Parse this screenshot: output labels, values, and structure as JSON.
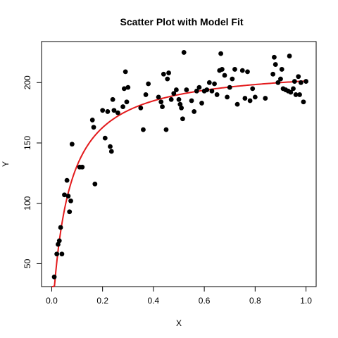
{
  "chart_data": {
    "type": "scatter",
    "title": "Scatter Plot with Model Fit",
    "xlabel": "X",
    "ylabel": "Y",
    "xlim": [
      -0.04,
      1.04
    ],
    "ylim": [
      31,
      234
    ],
    "x_ticks": [
      "0.0",
      "0.2",
      "0.4",
      "0.6",
      "0.8",
      "1.0"
    ],
    "x_tick_values": [
      0,
      0.2,
      0.4,
      0.6,
      0.8,
      1.0
    ],
    "y_ticks": [
      "50",
      "100",
      "150",
      "200"
    ],
    "y_tick_values": [
      50,
      100,
      150,
      200
    ],
    "grid": false,
    "legend": "none",
    "point_color": "#000000",
    "fit_color": "#e31a1c",
    "fit_model": {
      "form": "Vmax*x/(K+x)",
      "Vmax": 214,
      "K": 0.063
    },
    "series": [
      {
        "values": [
          [
            0.01,
            39
          ],
          [
            0.02,
            58
          ],
          [
            0.025,
            66
          ],
          [
            0.03,
            69
          ],
          [
            0.035,
            80
          ],
          [
            0.04,
            58
          ],
          [
            0.05,
            107
          ],
          [
            0.06,
            119
          ],
          [
            0.065,
            106
          ],
          [
            0.07,
            93
          ],
          [
            0.075,
            102
          ],
          [
            0.08,
            149
          ],
          [
            0.11,
            130
          ],
          [
            0.12,
            130
          ],
          [
            0.16,
            169
          ],
          [
            0.165,
            163
          ],
          [
            0.17,
            116
          ],
          [
            0.2,
            177
          ],
          [
            0.21,
            154
          ],
          [
            0.22,
            176
          ],
          [
            0.23,
            147
          ],
          [
            0.235,
            143
          ],
          [
            0.24,
            186
          ],
          [
            0.245,
            177
          ],
          [
            0.26,
            175
          ],
          [
            0.28,
            180
          ],
          [
            0.285,
            195
          ],
          [
            0.29,
            209
          ],
          [
            0.295,
            184
          ],
          [
            0.3,
            196
          ],
          [
            0.35,
            179
          ],
          [
            0.36,
            161
          ],
          [
            0.37,
            190
          ],
          [
            0.38,
            199
          ],
          [
            0.42,
            188
          ],
          [
            0.43,
            184
          ],
          [
            0.435,
            180
          ],
          [
            0.44,
            207
          ],
          [
            0.45,
            161
          ],
          [
            0.455,
            203
          ],
          [
            0.46,
            208
          ],
          [
            0.47,
            186
          ],
          [
            0.48,
            191
          ],
          [
            0.49,
            194
          ],
          [
            0.5,
            186
          ],
          [
            0.505,
            182
          ],
          [
            0.51,
            179
          ],
          [
            0.515,
            170
          ],
          [
            0.52,
            225
          ],
          [
            0.53,
            194
          ],
          [
            0.55,
            185
          ],
          [
            0.56,
            176
          ],
          [
            0.57,
            193
          ],
          [
            0.58,
            196
          ],
          [
            0.59,
            183
          ],
          [
            0.6,
            193
          ],
          [
            0.61,
            194
          ],
          [
            0.62,
            200
          ],
          [
            0.63,
            193
          ],
          [
            0.64,
            199
          ],
          [
            0.65,
            190
          ],
          [
            0.66,
            210
          ],
          [
            0.665,
            224
          ],
          [
            0.67,
            211
          ],
          [
            0.68,
            206
          ],
          [
            0.69,
            188
          ],
          [
            0.7,
            196
          ],
          [
            0.71,
            203
          ],
          [
            0.72,
            211
          ],
          [
            0.73,
            182
          ],
          [
            0.75,
            210
          ],
          [
            0.76,
            187
          ],
          [
            0.77,
            209
          ],
          [
            0.78,
            185
          ],
          [
            0.79,
            195
          ],
          [
            0.8,
            188
          ],
          [
            0.84,
            187
          ],
          [
            0.87,
            207
          ],
          [
            0.875,
            221
          ],
          [
            0.88,
            215
          ],
          [
            0.89,
            200
          ],
          [
            0.9,
            203
          ],
          [
            0.905,
            211
          ],
          [
            0.91,
            195
          ],
          [
            0.92,
            194
          ],
          [
            0.93,
            193
          ],
          [
            0.935,
            222
          ],
          [
            0.94,
            192
          ],
          [
            0.95,
            195
          ],
          [
            0.955,
            201
          ],
          [
            0.96,
            190
          ],
          [
            0.97,
            205
          ],
          [
            0.975,
            190
          ],
          [
            0.98,
            200
          ],
          [
            0.99,
            184
          ],
          [
            1.0,
            201
          ]
        ]
      }
    ]
  }
}
